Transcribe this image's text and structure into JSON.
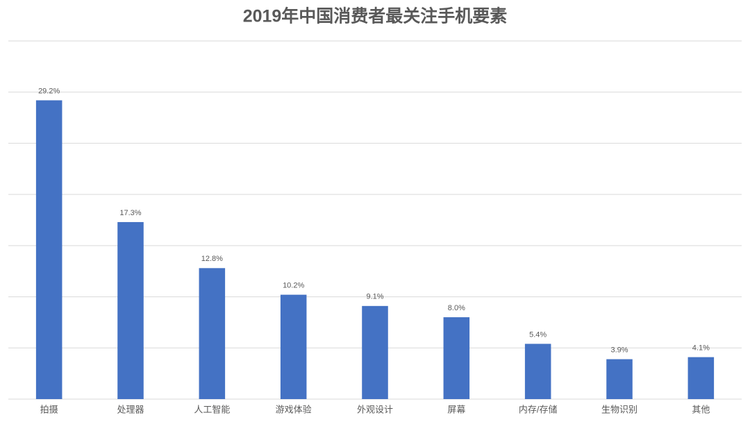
{
  "chart_data": {
    "type": "bar",
    "title": "2019年中国消费者最关注手机要素",
    "categories": [
      "拍摄",
      "处理器",
      "人工智能",
      "游戏体验",
      "外观设计",
      "屏幕",
      "内存/存储",
      "生物识别",
      "其他"
    ],
    "values": [
      29.2,
      17.3,
      12.8,
      10.2,
      9.1,
      8.0,
      5.4,
      3.9,
      4.1
    ],
    "value_labels": [
      "29.2%",
      "17.3%",
      "12.8%",
      "10.2%",
      "9.1%",
      "8.0%",
      "5.4%",
      "3.9%",
      "4.1%"
    ],
    "color": "#4472c4",
    "ylim": [
      0,
      35
    ],
    "yticks": [
      0,
      5,
      10,
      15,
      20,
      25,
      30,
      35
    ],
    "grid": true
  }
}
